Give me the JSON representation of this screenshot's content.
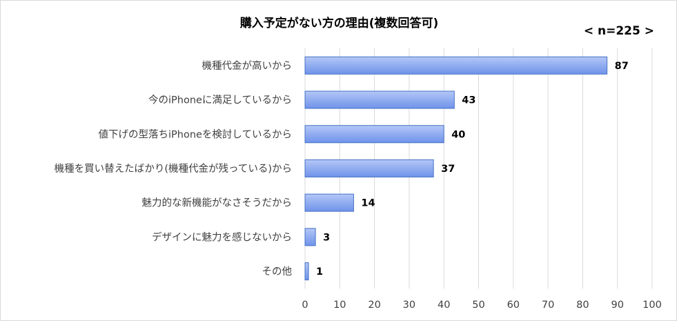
{
  "chart_data": {
    "type": "bar",
    "orientation": "horizontal",
    "title": "購入予定がない方の理由(複数回答可)",
    "annotation": "< n=225 >",
    "categories": [
      "機種代金が高いから",
      "今のiPhoneに満足しているから",
      "値下げの型落ちiPhoneを検討しているから",
      "機種を買い替えたばかり(機種代金が残っている)から",
      "魅力的な新機能がなさそうだから",
      "デザインに魅力を感じないから",
      "その他"
    ],
    "values": [
      87,
      43,
      40,
      37,
      14,
      3,
      1
    ],
    "xlim": [
      0,
      100
    ],
    "xticks": [
      0,
      10,
      20,
      30,
      40,
      50,
      60,
      70,
      80,
      90,
      100
    ],
    "grid": "vertical",
    "data_labels": true,
    "colors": {
      "bar_fill_top": "#b4c7f7",
      "bar_fill_bottom": "#6f93ea",
      "bar_stroke": "#4472c4",
      "grid": "#d9d9d9"
    }
  }
}
